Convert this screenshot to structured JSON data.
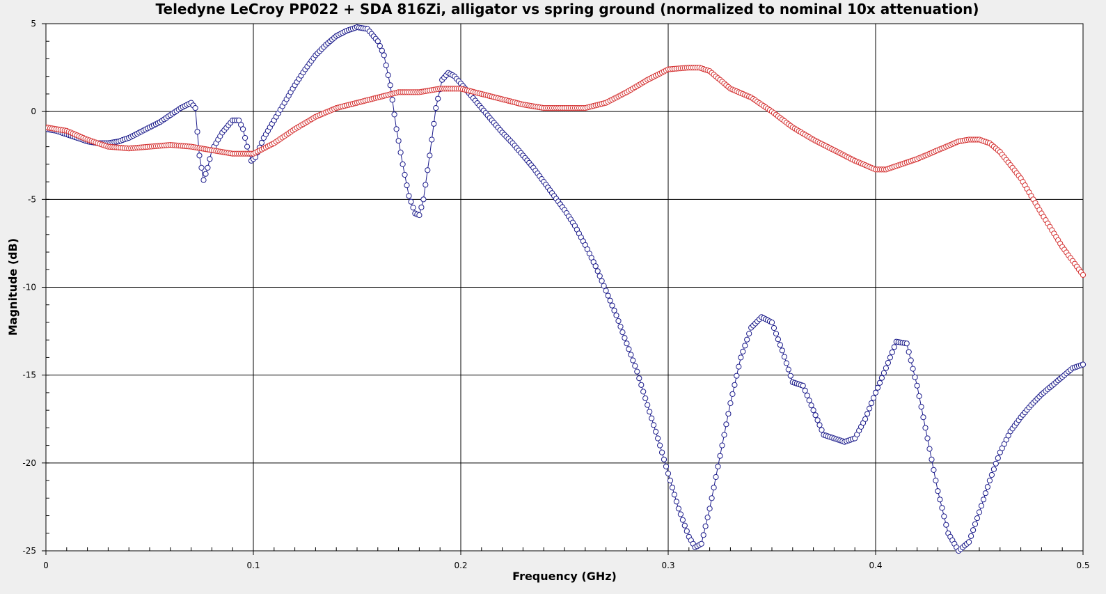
{
  "chart_data": {
    "type": "scatter",
    "title": "Teledyne LeCroy PP022 + SDA 816Zi, alligator vs spring ground (normalized to nominal 10x attenuation)",
    "xlabel": "Frequency (GHz)",
    "ylabel": "Magnitude (dB)",
    "xlim": [
      0,
      0.5
    ],
    "ylim": [
      -25,
      5
    ],
    "xticks": [
      "0",
      "0.1",
      "0.2",
      "0.3",
      "0.4",
      "0.5"
    ],
    "yticks": [
      "5",
      "0",
      "-5",
      "-10",
      "-15",
      "-20",
      "-25"
    ],
    "grid": true,
    "legend": "none",
    "colors": {
      "series_blue": "#1a1a8a",
      "series_red": "#d43030",
      "plot_bg": "#ffffff",
      "page_bg": "#efefef"
    },
    "series": [
      {
        "color": "#1a1a8a",
        "marker": "open-circle",
        "connected": true,
        "x": [
          0,
          0.005,
          0.01,
          0.015,
          0.02,
          0.025,
          0.03,
          0.035,
          0.04,
          0.045,
          0.05,
          0.055,
          0.06,
          0.065,
          0.07,
          0.072,
          0.074,
          0.076,
          0.078,
          0.08,
          0.085,
          0.09,
          0.093,
          0.095,
          0.097,
          0.099,
          0.101,
          0.105,
          0.11,
          0.115,
          0.12,
          0.125,
          0.13,
          0.135,
          0.14,
          0.145,
          0.15,
          0.155,
          0.16,
          0.163,
          0.166,
          0.169,
          0.172,
          0.175,
          0.178,
          0.18,
          0.182,
          0.185,
          0.188,
          0.191,
          0.194,
          0.197,
          0.2,
          0.205,
          0.21,
          0.215,
          0.22,
          0.225,
          0.23,
          0.235,
          0.24,
          0.245,
          0.25,
          0.255,
          0.26,
          0.265,
          0.27,
          0.275,
          0.28,
          0.285,
          0.29,
          0.295,
          0.3,
          0.305,
          0.31,
          0.313,
          0.316,
          0.32,
          0.325,
          0.33,
          0.335,
          0.34,
          0.345,
          0.35,
          0.355,
          0.36,
          0.365,
          0.37,
          0.375,
          0.38,
          0.385,
          0.39,
          0.395,
          0.4,
          0.405,
          0.41,
          0.415,
          0.42,
          0.425,
          0.43,
          0.435,
          0.44,
          0.445,
          0.45,
          0.455,
          0.46,
          0.465,
          0.47,
          0.475,
          0.48,
          0.485,
          0.49,
          0.495,
          0.5
        ],
        "y": [
          -1.0,
          -1.1,
          -1.3,
          -1.5,
          -1.7,
          -1.8,
          -1.8,
          -1.7,
          -1.5,
          -1.2,
          -0.9,
          -0.6,
          -0.2,
          0.2,
          0.5,
          0.2,
          -2.5,
          -3.9,
          -3.2,
          -2.2,
          -1.2,
          -0.5,
          -0.5,
          -1.0,
          -2.0,
          -2.8,
          -2.6,
          -1.5,
          -0.5,
          0.5,
          1.5,
          2.4,
          3.2,
          3.8,
          4.3,
          4.6,
          4.8,
          4.7,
          4.0,
          3.2,
          1.5,
          -1.0,
          -3.0,
          -4.8,
          -5.8,
          -5.9,
          -5.0,
          -2.5,
          0.2,
          1.8,
          2.2,
          2.0,
          1.6,
          0.9,
          0.2,
          -0.5,
          -1.2,
          -1.8,
          -2.5,
          -3.2,
          -4.0,
          -4.8,
          -5.6,
          -6.5,
          -7.6,
          -8.8,
          -10.2,
          -11.6,
          -13.2,
          -14.8,
          -16.7,
          -18.6,
          -20.6,
          -22.6,
          -24.2,
          -24.8,
          -24.6,
          -22.6,
          -19.6,
          -16.6,
          -14.0,
          -12.3,
          -11.7,
          -12.0,
          -13.6,
          -15.4,
          -15.6,
          -17.0,
          -18.4,
          -18.6,
          -18.8,
          -18.6,
          -17.5,
          -16.0,
          -14.6,
          -13.1,
          -13.2,
          -15.6,
          -18.6,
          -21.6,
          -24.0,
          -25.0,
          -24.5,
          -22.8,
          -21.0,
          -19.4,
          -18.2,
          -17.4,
          -16.7,
          -16.1,
          -15.6,
          -15.1,
          -14.6,
          -14.4
        ]
      },
      {
        "color": "#d43030",
        "marker": "open-circle",
        "connected": false,
        "x": [
          0,
          0.01,
          0.02,
          0.03,
          0.04,
          0.05,
          0.06,
          0.07,
          0.08,
          0.09,
          0.1,
          0.11,
          0.12,
          0.13,
          0.14,
          0.15,
          0.16,
          0.17,
          0.18,
          0.19,
          0.2,
          0.21,
          0.22,
          0.23,
          0.24,
          0.25,
          0.26,
          0.27,
          0.28,
          0.29,
          0.3,
          0.31,
          0.315,
          0.32,
          0.33,
          0.34,
          0.35,
          0.36,
          0.37,
          0.38,
          0.39,
          0.4,
          0.405,
          0.41,
          0.42,
          0.43,
          0.44,
          0.445,
          0.45,
          0.455,
          0.46,
          0.47,
          0.48,
          0.49,
          0.5
        ],
        "y": [
          -0.9,
          -1.1,
          -1.6,
          -2.0,
          -2.1,
          -2.0,
          -1.9,
          -2.0,
          -2.2,
          -2.4,
          -2.4,
          -1.8,
          -1.0,
          -0.3,
          0.2,
          0.5,
          0.8,
          1.1,
          1.1,
          1.3,
          1.3,
          1.0,
          0.7,
          0.4,
          0.2,
          0.2,
          0.2,
          0.5,
          1.1,
          1.8,
          2.4,
          2.5,
          2.5,
          2.3,
          1.3,
          0.8,
          0.0,
          -0.9,
          -1.6,
          -2.2,
          -2.8,
          -3.3,
          -3.3,
          -3.1,
          -2.7,
          -2.2,
          -1.7,
          -1.6,
          -1.6,
          -1.8,
          -2.3,
          -3.8,
          -5.8,
          -7.7,
          -9.3
        ]
      }
    ]
  }
}
